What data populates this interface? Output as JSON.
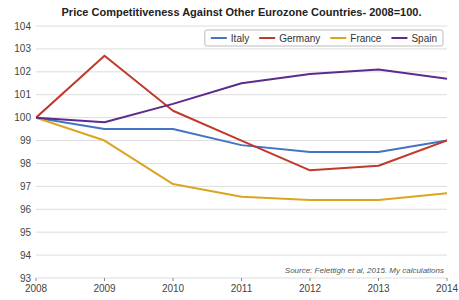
{
  "chart_data": {
    "type": "line",
    "title": "Price Competitiveness Against Other Eurozone Countries- 2008=100.",
    "x": [
      2008,
      2009,
      2010,
      2011,
      2012,
      2013,
      2014
    ],
    "xlim": [
      2008,
      2014
    ],
    "xticks": [
      2008,
      2009,
      2010,
      2011,
      2012,
      2013,
      2014
    ],
    "series": [
      {
        "name": "Italy",
        "color": "#4472C4",
        "values": [
          100.0,
          99.5,
          99.5,
          98.8,
          98.5,
          98.5,
          99.0
        ]
      },
      {
        "name": "Germany",
        "color": "#C0392B",
        "values": [
          100.0,
          102.7,
          100.3,
          99.0,
          97.7,
          97.9,
          99.0
        ]
      },
      {
        "name": "France",
        "color": "#DAA520",
        "values": [
          100.0,
          99.0,
          97.1,
          96.55,
          96.4,
          96.4,
          96.7
        ]
      },
      {
        "name": "Spain",
        "color": "#5B2C8C",
        "values": [
          100.0,
          99.8,
          100.6,
          101.5,
          101.9,
          102.1,
          101.7
        ]
      }
    ],
    "ylim": [
      93,
      104
    ],
    "yticks": [
      93,
      94,
      95,
      96,
      97,
      98,
      99,
      100,
      101,
      102,
      103,
      104
    ],
    "grid": true,
    "legend": "upper right",
    "annotation": "Source: Felettigh et al, 2015. My calculations"
  }
}
